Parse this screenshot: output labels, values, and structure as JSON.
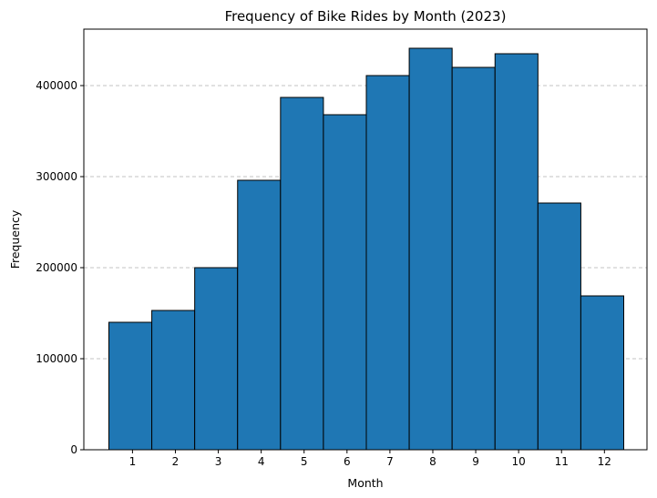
{
  "chart_data": {
    "type": "bar",
    "title": "Frequency of Bike Rides by Month (2023)",
    "xlabel": "Month",
    "ylabel": "Frequency",
    "categories": [
      "1",
      "2",
      "3",
      "4",
      "5",
      "6",
      "7",
      "8",
      "9",
      "10",
      "11",
      "12"
    ],
    "values": [
      140000,
      153000,
      200000,
      296000,
      387000,
      368000,
      411000,
      441000,
      420000,
      435000,
      271000,
      169000
    ],
    "ylim": [
      0,
      462000
    ],
    "yticks": [
      0,
      100000,
      200000,
      300000,
      400000
    ],
    "ytick_labels": [
      "0",
      "100000",
      "200000",
      "300000",
      "400000"
    ],
    "grid": "y-dashed",
    "colors": {
      "bar": "#1f77b4",
      "edge": "#000000",
      "grid": "#b0b0b0"
    }
  }
}
